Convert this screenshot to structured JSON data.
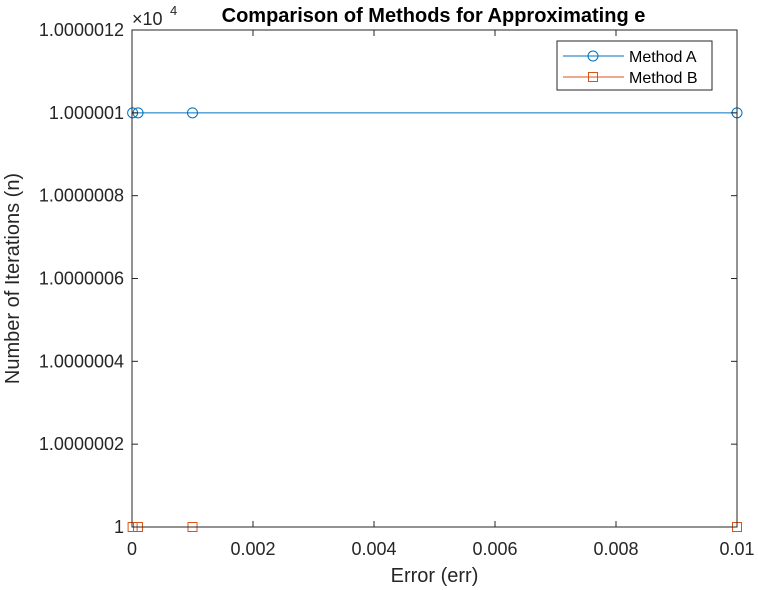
{
  "chart_data": {
    "type": "line",
    "title": "Comparison of Methods for Approximating e",
    "xlabel": "Error (err)",
    "ylabel": "Number of Iterations (n)",
    "multiplier_label": "×10",
    "multiplier_exponent": "4",
    "xlim": [
      0,
      0.01
    ],
    "ylim": [
      1,
      1.0000012
    ],
    "x_ticks": [
      0,
      0.002,
      0.004,
      0.006,
      0.008,
      0.01
    ],
    "x_tick_labels": [
      "0",
      "0.002",
      "0.004",
      "0.006",
      "0.008",
      "0.01"
    ],
    "y_ticks": [
      1,
      1.0000002,
      1.0000004,
      1.0000006,
      1.0000008,
      1.000001,
      1.0000012
    ],
    "y_tick_labels": [
      "1",
      "1.0000002",
      "1.0000004",
      "1.0000006",
      "1.0000008",
      "1.000001",
      "1.0000012"
    ],
    "grid": false,
    "legend_position": "top-right",
    "series": [
      {
        "name": "Method A",
        "marker": "circle",
        "color": "#0072BD",
        "x": [
          1e-05,
          0.0001,
          0.001,
          0.01
        ],
        "y": [
          1.000001,
          1.000001,
          1.000001,
          1.000001
        ]
      },
      {
        "name": "Method B",
        "marker": "square",
        "color": "#D95319",
        "x": [
          1e-05,
          0.0001,
          0.001,
          0.01
        ],
        "y": [
          1,
          1,
          1,
          1
        ]
      }
    ]
  }
}
